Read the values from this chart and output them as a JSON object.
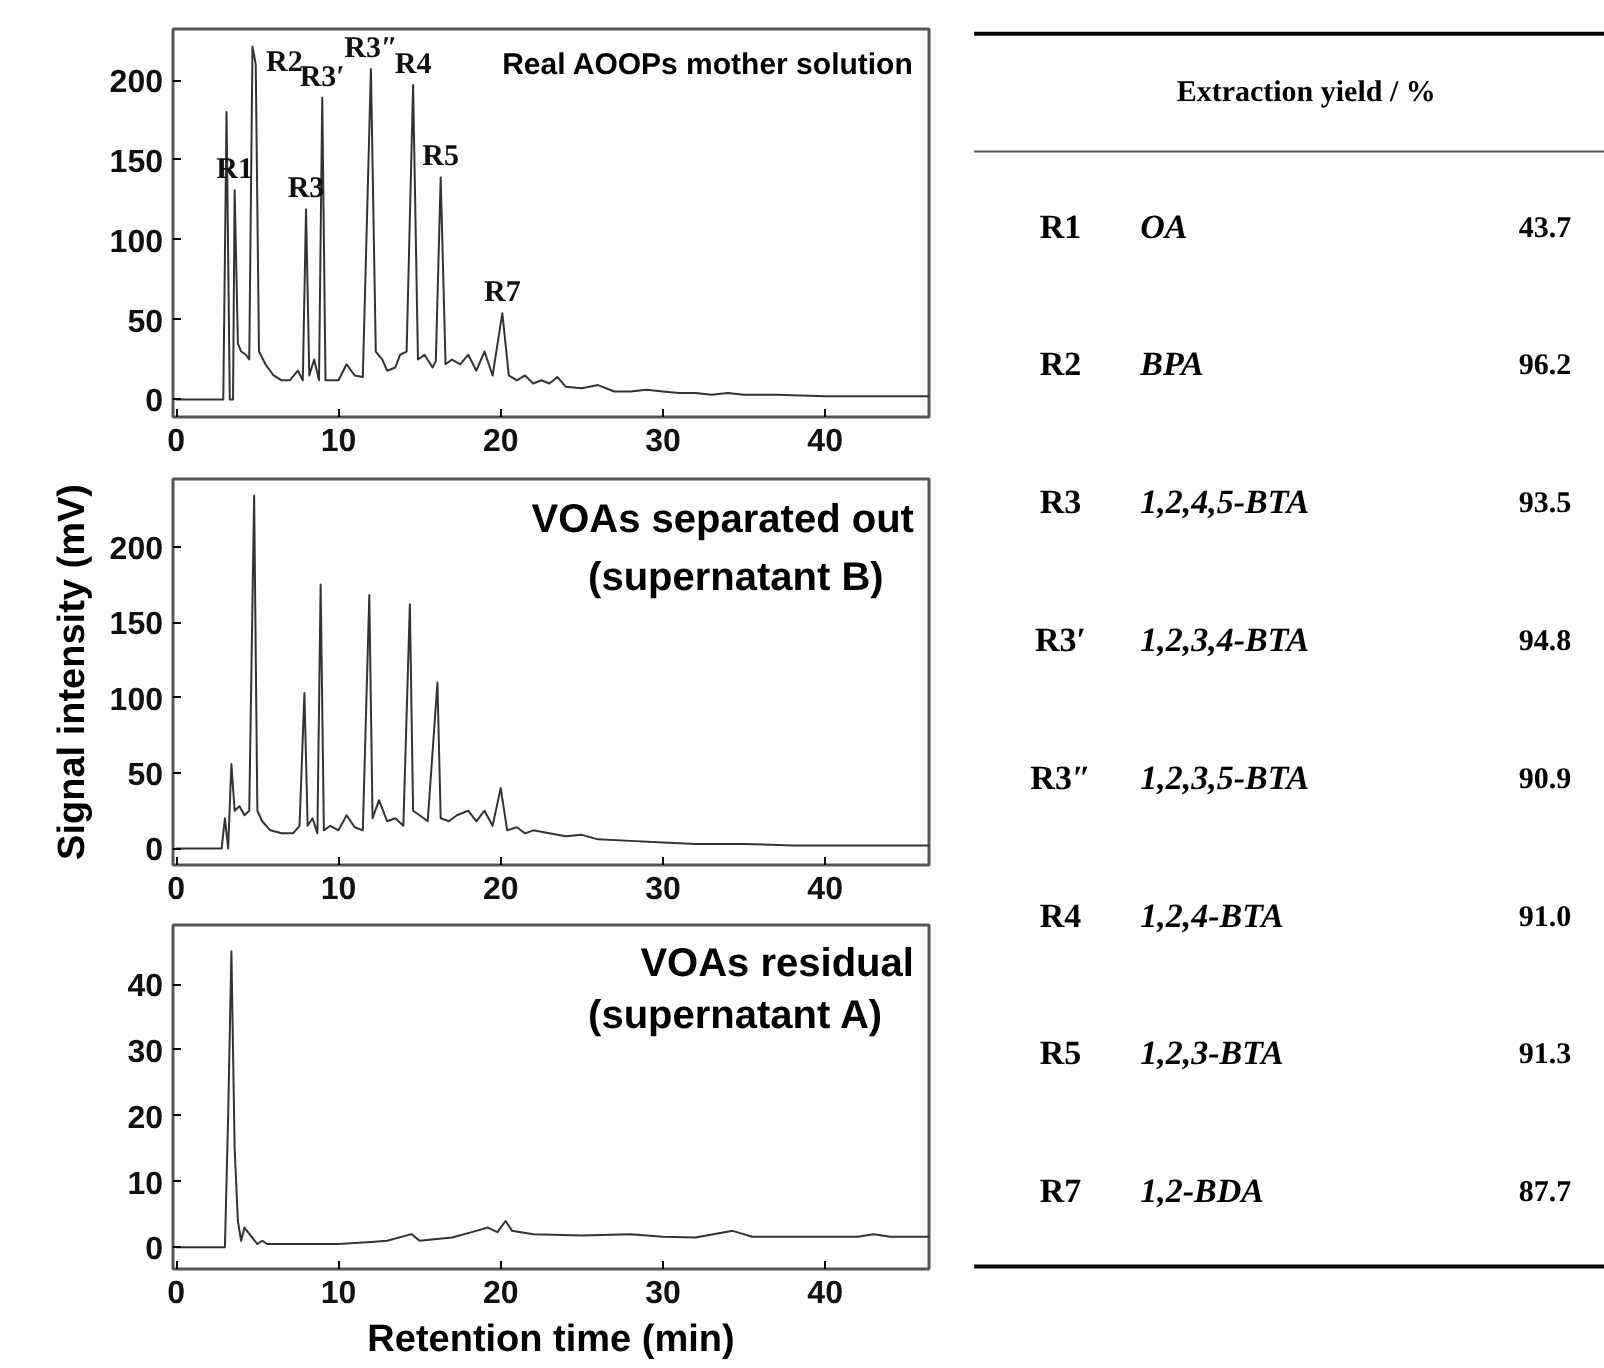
{
  "chart_data": [
    {
      "type": "line",
      "title": "Real AOOPs mother solution",
      "xlim": [
        -0.2,
        46.4
      ],
      "ylim": [
        -11,
        232
      ],
      "xticks": [
        0,
        10,
        20,
        30,
        40
      ],
      "yticks": [
        0,
        50,
        100,
        150,
        200
      ],
      "annotations": [
        {
          "text": "R1",
          "x": 3.6,
          "y": 131
        },
        {
          "text": "R2",
          "x": 4.8,
          "y": 221
        },
        {
          "text": "R3",
          "x": 8.0,
          "y": 119
        },
        {
          "text": "R3′",
          "x": 9.0,
          "y": 189
        },
        {
          "text": "R3″",
          "x": 12.0,
          "y": 207
        },
        {
          "text": "R4",
          "x": 14.6,
          "y": 197
        },
        {
          "text": "R5",
          "x": 16.3,
          "y": 139
        },
        {
          "text": "R7",
          "x": 20.1,
          "y": 54
        }
      ],
      "series": [
        {
          "color": "#333333",
          "x": [
            0,
            2.9,
            3.1,
            3.3,
            3.5,
            3.6,
            3.8,
            4.0,
            4.3,
            4.5,
            4.7,
            4.9,
            5.1,
            5.5,
            6.0,
            6.5,
            7.0,
            7.5,
            7.8,
            8.0,
            8.2,
            8.5,
            8.8,
            9.0,
            9.2,
            10.0,
            10.5,
            11.0,
            11.5,
            12.0,
            12.3,
            12.7,
            13.0,
            13.5,
            13.8,
            14.2,
            14.6,
            14.9,
            15.3,
            15.8,
            16.0,
            16.3,
            16.6,
            17.0,
            17.5,
            18.0,
            18.5,
            19.0,
            19.5,
            20.1,
            20.5,
            21.0,
            21.5,
            22.0,
            22.5,
            23.0,
            23.5,
            24.0,
            25.0,
            26.0,
            27.0,
            28.0,
            29.0,
            30.0,
            31.0,
            32.0,
            33.0,
            34.0,
            35.0,
            37.0,
            40.0,
            43.0,
            46.4
          ],
          "values": [
            0,
            0,
            180,
            0,
            0,
            131,
            35,
            30,
            28,
            25,
            221,
            210,
            30,
            22,
            15,
            12,
            12,
            18,
            12,
            119,
            15,
            25,
            12,
            189,
            12,
            12,
            22,
            15,
            14,
            207,
            30,
            25,
            18,
            20,
            28,
            30,
            197,
            25,
            28,
            20,
            24,
            139,
            22,
            25,
            22,
            28,
            18,
            30,
            15,
            54,
            15,
            12,
            15,
            10,
            12,
            10,
            14,
            8,
            7,
            9,
            5,
            5,
            6,
            5,
            4,
            4,
            3,
            4,
            3,
            3,
            2,
            2,
            2
          ]
        }
      ]
    },
    {
      "type": "line",
      "title": "VOAs separated out",
      "subtitle": "(supernatant B)",
      "ylabel": "Signal intensity (mV)",
      "xlim": [
        -0.2,
        46.4
      ],
      "ylim": [
        -11,
        245
      ],
      "xticks": [
        0,
        10,
        20,
        30,
        40
      ],
      "yticks": [
        0,
        50,
        100,
        150,
        200
      ],
      "series": [
        {
          "color": "#333333",
          "x": [
            0,
            2.8,
            3.0,
            3.2,
            3.4,
            3.6,
            3.9,
            4.2,
            4.5,
            4.8,
            5.0,
            5.3,
            5.8,
            6.5,
            7.2,
            7.6,
            7.9,
            8.1,
            8.4,
            8.7,
            8.9,
            9.1,
            9.5,
            10.0,
            10.5,
            11.0,
            11.5,
            11.9,
            12.1,
            12.5,
            13.0,
            13.5,
            14.0,
            14.4,
            14.6,
            15.0,
            15.5,
            16.1,
            16.3,
            16.8,
            17.3,
            18.0,
            18.5,
            19.0,
            19.5,
            20.0,
            20.4,
            21.0,
            21.5,
            22.0,
            23.0,
            24.0,
            25.0,
            26.0,
            28.0,
            30.0,
            32.0,
            35.0,
            38.0,
            42.0,
            46.4
          ],
          "values": [
            0,
            0,
            20,
            0,
            56,
            25,
            28,
            22,
            25,
            234,
            25,
            18,
            12,
            10,
            10,
            15,
            103,
            15,
            20,
            10,
            175,
            12,
            15,
            12,
            22,
            14,
            12,
            168,
            20,
            32,
            18,
            20,
            15,
            162,
            25,
            22,
            18,
            110,
            20,
            18,
            22,
            25,
            18,
            25,
            15,
            40,
            12,
            14,
            10,
            12,
            10,
            8,
            9,
            6,
            5,
            4,
            3,
            3,
            2,
            2,
            2
          ]
        }
      ]
    },
    {
      "type": "line",
      "title": "VOAs residual",
      "subtitle": "(supernatant A)",
      "xlabel": "Retention time (min)",
      "xlim": [
        -0.2,
        46.4
      ],
      "ylim": [
        -3.3,
        49
      ],
      "xticks": [
        0,
        10,
        20,
        30,
        40
      ],
      "yticks": [
        0,
        10,
        20,
        30,
        40
      ],
      "series": [
        {
          "color": "#333333",
          "x": [
            0,
            3.0,
            3.2,
            3.4,
            3.6,
            3.8,
            4.0,
            4.2,
            5.0,
            5.3,
            5.6,
            8.0,
            10.0,
            12.0,
            13.0,
            14.5,
            15.0,
            17.0,
            18.5,
            19.2,
            19.8,
            20.3,
            20.7,
            22.0,
            25.0,
            28.0,
            30.0,
            32.0,
            34.3,
            35.5,
            38.0,
            42.0,
            43.0,
            44.0,
            46.4
          ],
          "values": [
            0,
            0,
            20,
            45,
            15,
            4,
            1,
            3,
            0.5,
            1,
            0.5,
            0.5,
            0.5,
            0.8,
            1,
            2,
            1,
            1.5,
            2.5,
            3,
            2.3,
            4,
            2.5,
            2,
            1.8,
            2,
            1.6,
            1.5,
            2.5,
            1.6,
            1.6,
            1.6,
            2,
            1.6,
            1.6
          ]
        }
      ]
    },
    {
      "type": "other",
      "title": "Extraction yield / %",
      "annotations": [
        "R1",
        "OA",
        "43.7",
        "R2",
        "BPA",
        "96.2",
        "R3",
        "1,2,4,5-BTA",
        "93.5",
        "R3′",
        "1,2,3,4-BTA",
        "94.8",
        "R3″",
        "1,2,3,5-BTA",
        "90.9",
        "R4",
        "1,2,4-BTA",
        "91.0",
        "R5",
        "1,2,3-BTA",
        "91.3",
        "R7",
        "1,2-BDA",
        "87.7"
      ]
    }
  ]
}
